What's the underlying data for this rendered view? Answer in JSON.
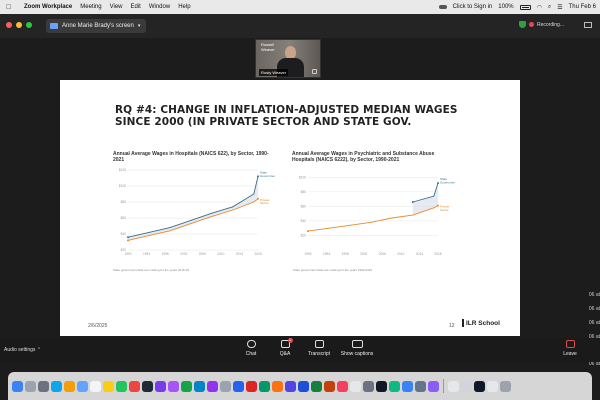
{
  "menubar": {
    "app": "Zoom Workplace",
    "items": [
      "Meeting",
      "View",
      "Edit",
      "Window",
      "Help"
    ],
    "click_to_sign_in": "Click to Sign in",
    "battery": "100%",
    "clock": "Thu Feb 6"
  },
  "zoom": {
    "screen_label": "Anne Marie Brady's screen",
    "recording": "Recording..."
  },
  "speaker": {
    "first_name": "Russell",
    "last_name": "Weaver",
    "name_tag": "Rusty Weaver"
  },
  "slide": {
    "title_line1": "RQ #4: CHANGE IN INFLATION-ADJUSTED MEDIAN WAGES",
    "title_line2": "SINCE 2000 (IN PRIVATE SECTOR AND STATE GOV.",
    "date": "2/6/2025",
    "page": "12",
    "logo": "ILR School"
  },
  "chart_data": [
    {
      "type": "line",
      "title": "Annual Average Wages in Hospitals (NAICS 622), by Sector, 1990-2021",
      "x": [
        1990,
        1995,
        2000,
        2005,
        2010,
        2015,
        2020,
        2021
      ],
      "xticks": [
        "1990",
        "1994",
        "1998",
        "2002",
        "2006",
        "2010",
        "2014",
        "2018"
      ],
      "yticks": [
        "$120",
        "$100",
        "$80",
        "$60",
        "$40",
        "$20"
      ],
      "ylim": [
        20,
        120
      ],
      "series": [
        {
          "name": "State Government",
          "color": "#3d6e8a",
          "values": [
            36,
            42,
            48,
            57,
            66,
            74,
            90,
            112
          ]
        },
        {
          "name": "Private Sector",
          "color": "#e88a2e",
          "values": [
            32,
            38,
            44,
            53,
            62,
            70,
            80,
            84
          ]
        }
      ],
      "note": "State government data are missing for the years 2016-18"
    },
    {
      "type": "line",
      "title": "Annual Average Wages in Psychiatric and Substance Abuse Hospitals (NAICS 6222), by Sector, 1990-2021",
      "x": [
        1990,
        1995,
        2000,
        2005,
        2010,
        2015,
        2020,
        2021
      ],
      "xticks": [
        "1990",
        "1994",
        "1998",
        "2002",
        "2006",
        "2010",
        "2014",
        "2018"
      ],
      "yticks": [
        "$100",
        "$80",
        "$60",
        "$40",
        "$20"
      ],
      "ylim": [
        0,
        110
      ],
      "series": [
        {
          "name": "State Government",
          "color": "#3d6e8a",
          "values": [
            null,
            null,
            null,
            null,
            null,
            66,
            74,
            92
          ]
        },
        {
          "name": "Private Sector",
          "color": "#e88a2e",
          "values": [
            26,
            30,
            34,
            38,
            44,
            48,
            58,
            61
          ]
        }
      ],
      "note": "State government data are missing for the years 1990-2010"
    }
  ],
  "side_times": [
    "06 at",
    "06 at",
    "06 at",
    "06 at",
    "06 at"
  ],
  "toolbar": {
    "audio_settings": "Audio settings",
    "chat": "Chat",
    "qa": "Q&A",
    "qa_badge": "1",
    "transcript": "Transcript",
    "show_captions": "Show captions",
    "leave": "Leave"
  },
  "colors": {
    "state_gov": "#3d6e8a",
    "private": "#e88a2e",
    "leave": "#e5484d"
  }
}
